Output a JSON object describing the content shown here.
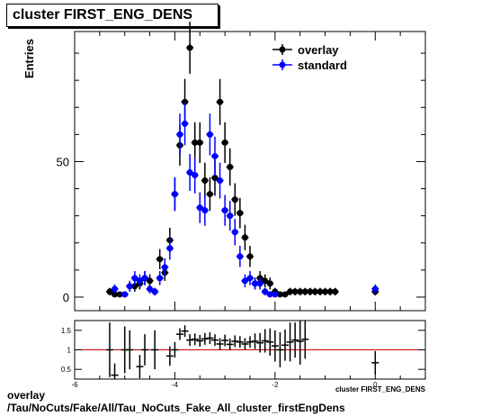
{
  "title": "cluster FIRST_ENG_DENS",
  "footer": {
    "line1": "overlay",
    "line2": "/Tau/NoCuts/Fake/All/Tau_NoCuts_Fake_All_cluster_firstEngDens"
  },
  "colors": {
    "overlay": "#000000",
    "standard": "#0000ff",
    "ratio_line": "#cc0000"
  },
  "chart_data": [
    {
      "type": "scatter",
      "ylabel": "Entries",
      "xlim": [
        -6,
        1
      ],
      "ylim": [
        -5,
        98
      ],
      "y_ticks": [
        0,
        50
      ],
      "legend": {
        "position": "top-right",
        "entries": [
          "overlay",
          "standard"
        ]
      },
      "series": [
        {
          "name": "overlay",
          "x": [
            -5.3,
            -5.2,
            -5.1,
            -5.0,
            -4.9,
            -4.8,
            -4.7,
            -4.6,
            -4.5,
            -4.4,
            -4.3,
            -4.2,
            -4.1,
            -4.0,
            -3.9,
            -3.8,
            -3.7,
            -3.6,
            -3.5,
            -3.4,
            -3.3,
            -3.2,
            -3.1,
            -3.0,
            -2.9,
            -2.8,
            -2.7,
            -2.6,
            -2.5,
            -2.4,
            -2.3,
            -2.2,
            -2.1,
            -2.0,
            -1.9,
            -1.8,
            -1.7,
            -1.6,
            -1.5,
            -1.4,
            -1.3,
            -1.2,
            -1.1,
            -1.0,
            -0.9,
            -0.8,
            0.0
          ],
          "y": [
            2,
            1,
            1,
            1,
            4,
            4,
            5,
            7,
            6,
            2,
            14,
            9,
            21,
            38,
            56,
            72,
            92,
            57,
            57,
            43,
            38,
            44,
            72,
            57,
            48,
            36,
            31,
            22,
            15,
            5,
            7,
            6,
            5,
            2,
            1,
            1,
            2,
            2,
            2,
            2,
            2,
            2,
            2,
            2,
            2,
            2,
            2
          ],
          "err": [
            1.4,
            1,
            1,
            1,
            2,
            2,
            2.2,
            2.6,
            2.4,
            1.4,
            3.7,
            3,
            4.6,
            6.2,
            7.5,
            8.5,
            9.6,
            7.5,
            7.5,
            6.6,
            6.2,
            6.6,
            8.5,
            7.5,
            6.9,
            6,
            5.6,
            4.7,
            3.9,
            2.2,
            2.6,
            2.4,
            2.2,
            1.4,
            1,
            1,
            1.4,
            1.4,
            1.4,
            1.4,
            1.4,
            1.4,
            1.4,
            1.4,
            1.4,
            1.4,
            1.4
          ]
        },
        {
          "name": "standard",
          "x": [
            -5.2,
            -5.0,
            -4.9,
            -4.8,
            -4.7,
            -4.6,
            -4.5,
            -4.4,
            -4.3,
            -4.2,
            -4.1,
            -4.0,
            -3.9,
            -3.8,
            -3.7,
            -3.6,
            -3.5,
            -3.4,
            -3.3,
            -3.2,
            -3.1,
            -3.0,
            -2.9,
            -2.8,
            -2.7,
            -2.6,
            -2.5,
            -2.4,
            -2.3,
            -2.2,
            -2.1,
            -2.0,
            0.0
          ],
          "y": [
            3,
            1,
            4,
            7,
            6,
            7,
            3,
            2,
            7,
            11,
            18,
            38,
            60,
            64,
            46,
            45,
            33,
            32,
            60,
            52,
            43,
            32,
            30,
            24,
            15,
            6,
            7,
            5,
            5,
            2,
            1,
            1,
            3
          ],
          "err": [
            1.7,
            1,
            2,
            2.6,
            2.4,
            2.6,
            1.7,
            1.4,
            2.6,
            3.3,
            4.2,
            6.2,
            7.7,
            8,
            6.8,
            6.7,
            5.7,
            5.7,
            7.7,
            7.2,
            6.6,
            5.7,
            5.5,
            4.9,
            3.9,
            2.4,
            2.6,
            2.2,
            2.2,
            1.4,
            1,
            1,
            1.7
          ]
        }
      ]
    },
    {
      "type": "scatter",
      "xlabel": "cluster FIRST_ENG_DENS",
      "xlim": [
        -6,
        1
      ],
      "ylim": [
        0.25,
        1.75
      ],
      "x_ticks": [
        -6,
        -4,
        -2,
        0
      ],
      "y_ticks": [
        0.5,
        1,
        1.5
      ],
      "reference_line": 1,
      "points": {
        "x": [
          -5.3,
          -5.2,
          -5.0,
          -4.9,
          -4.7,
          -4.6,
          -4.4,
          -4.1,
          -4.0,
          -3.9,
          -3.8,
          -3.7,
          -3.6,
          -3.5,
          -3.4,
          -3.3,
          -3.2,
          -3.1,
          -3.0,
          -2.9,
          -2.8,
          -2.7,
          -2.6,
          -2.5,
          -2.4,
          -2.3,
          -2.2,
          -2.1,
          -2.0,
          -1.9,
          -1.8,
          -1.7,
          -1.6,
          -1.5,
          -1.4,
          0.0
        ],
        "y": [
          1.0,
          0.35,
          1.0,
          1.0,
          0.57,
          1.0,
          1.0,
          0.84,
          1.0,
          1.4,
          1.48,
          1.25,
          1.27,
          1.23,
          1.28,
          1.3,
          1.25,
          1.15,
          1.24,
          1.14,
          1.22,
          1.2,
          1.15,
          1.2,
          1.22,
          1.18,
          1.23,
          1.2,
          1.1,
          1.0,
          1.12,
          1.2,
          1.25,
          1.22,
          1.27,
          0.67
        ],
        "err": [
          0.7,
          0.3,
          0.6,
          0.5,
          0.3,
          0.4,
          0.5,
          0.25,
          0.2,
          0.15,
          0.15,
          0.15,
          0.15,
          0.15,
          0.15,
          0.15,
          0.15,
          0.15,
          0.15,
          0.15,
          0.15,
          0.15,
          0.15,
          0.15,
          0.2,
          0.25,
          0.3,
          0.35,
          0.4,
          0.45,
          0.4,
          0.5,
          0.45,
          0.6,
          0.5,
          0.3
        ]
      }
    }
  ]
}
